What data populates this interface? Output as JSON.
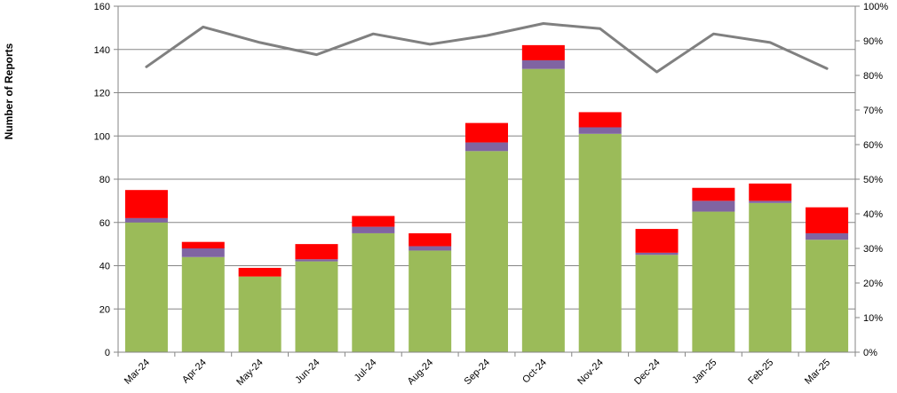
{
  "chart_data": {
    "type": "bar",
    "stacked": true,
    "categories": [
      "Mar-24",
      "Apr-24",
      "May-24",
      "Jun-24",
      "Jul-24",
      "Aug-24",
      "Sep-24",
      "Oct-24",
      "Nov-24",
      "Dec-24",
      "Jan-25",
      "Feb-25",
      "Mar-25"
    ],
    "series": [
      {
        "color": "#9BBB59",
        "values": [
          60,
          44,
          35,
          42,
          55,
          47,
          93,
          131,
          101,
          45,
          65,
          69,
          52
        ]
      },
      {
        "color": "#8064A2",
        "values": [
          2,
          4,
          0,
          1,
          3,
          2,
          4,
          4,
          3,
          1,
          5,
          1,
          3
        ]
      },
      {
        "color": "#FF0000",
        "values": [
          13,
          3,
          4,
          7,
          5,
          6,
          9,
          7,
          7,
          11,
          6,
          8,
          12
        ]
      }
    ],
    "line": {
      "color": "#808080",
      "axis": "right",
      "values": [
        82.5,
        94,
        89.5,
        86,
        92,
        89,
        91.5,
        95,
        93.5,
        81,
        92,
        89.5,
        82
      ]
    },
    "ylabel": "Number of Reports",
    "ylim": [
      0,
      160
    ],
    "yticks": [
      0,
      20,
      40,
      60,
      80,
      100,
      120,
      140,
      160
    ],
    "y2lim": [
      0,
      100
    ],
    "y2ticks": [
      "0%",
      "10%",
      "20%",
      "30%",
      "40%",
      "50%",
      "60%",
      "70%",
      "80%",
      "90%",
      "100%"
    ],
    "grid": true,
    "legend": "none"
  }
}
